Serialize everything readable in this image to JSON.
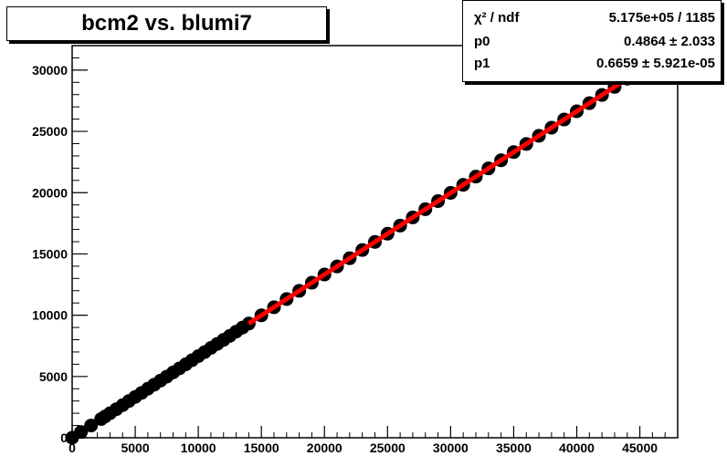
{
  "chart_data": {
    "type": "scatter",
    "title": "bcm2 vs. blumi7",
    "xlabel": "",
    "ylabel": "",
    "xlim": [
      0,
      48000
    ],
    "ylim": [
      0,
      32000
    ],
    "x_ticks": [
      0,
      5000,
      10000,
      15000,
      20000,
      25000,
      30000,
      35000,
      40000,
      45000
    ],
    "x_tick_labels": [
      "0",
      "5000",
      "10000",
      "15000",
      "20000",
      "25000",
      "30000",
      "35000",
      "40000",
      "45000"
    ],
    "y_ticks": [
      0,
      5000,
      10000,
      15000,
      20000,
      25000,
      30000
    ],
    "y_tick_labels": [
      "0",
      "5000",
      "10000",
      "15000",
      "20000",
      "25000",
      "30000"
    ],
    "series": [
      {
        "x": [
          0,
          700,
          1500,
          2300,
          2600,
          3000,
          3500,
          4000,
          4500,
          5000,
          5500,
          6000,
          6500,
          7000,
          7500,
          8000,
          8500,
          9000,
          9500,
          10000,
          10500,
          11000,
          11500,
          12000,
          12500,
          13000,
          13500,
          14000,
          15000,
          16000,
          17000,
          18000,
          19000,
          20000,
          21000,
          22000,
          23000,
          24000,
          25000,
          26000,
          27000,
          28000,
          29000,
          30000,
          31000,
          32000,
          33000,
          34000,
          35000,
          36000,
          37000,
          38000,
          39000,
          40000,
          41000,
          42000,
          43000,
          44000,
          44500
        ],
        "y": [
          0,
          470,
          1000,
          1530,
          1730,
          2000,
          2330,
          2660,
          3000,
          3330,
          3660,
          4000,
          4330,
          4660,
          4990,
          5330,
          5660,
          5990,
          6330,
          6660,
          6990,
          7330,
          7660,
          7990,
          8320,
          8660,
          8990,
          9320,
          9990,
          10650,
          11320,
          11990,
          12650,
          13320,
          13980,
          14650,
          15320,
          15980,
          16650,
          17310,
          17980,
          18650,
          19310,
          19980,
          20640,
          21310,
          21980,
          22640,
          23310,
          23970,
          24640,
          25300,
          25970,
          26640,
          27300,
          27970,
          28630,
          29300,
          29630
        ]
      }
    ],
    "fit": {
      "x_start": 14000,
      "x_end": 44500,
      "p0": 0.4864,
      "p1": 0.6659,
      "color": "#ff0000"
    },
    "marker_color": "#000000",
    "grid": false
  },
  "stats": {
    "chi2_label": "χ² / ndf",
    "chi2_value": "5.175e+05 / 1185",
    "p0_label": "p0",
    "p0_value": "0.4864 ± 2.033",
    "p1_label": "p1",
    "p1_value": "0.6659 ± 5.921e-05"
  }
}
